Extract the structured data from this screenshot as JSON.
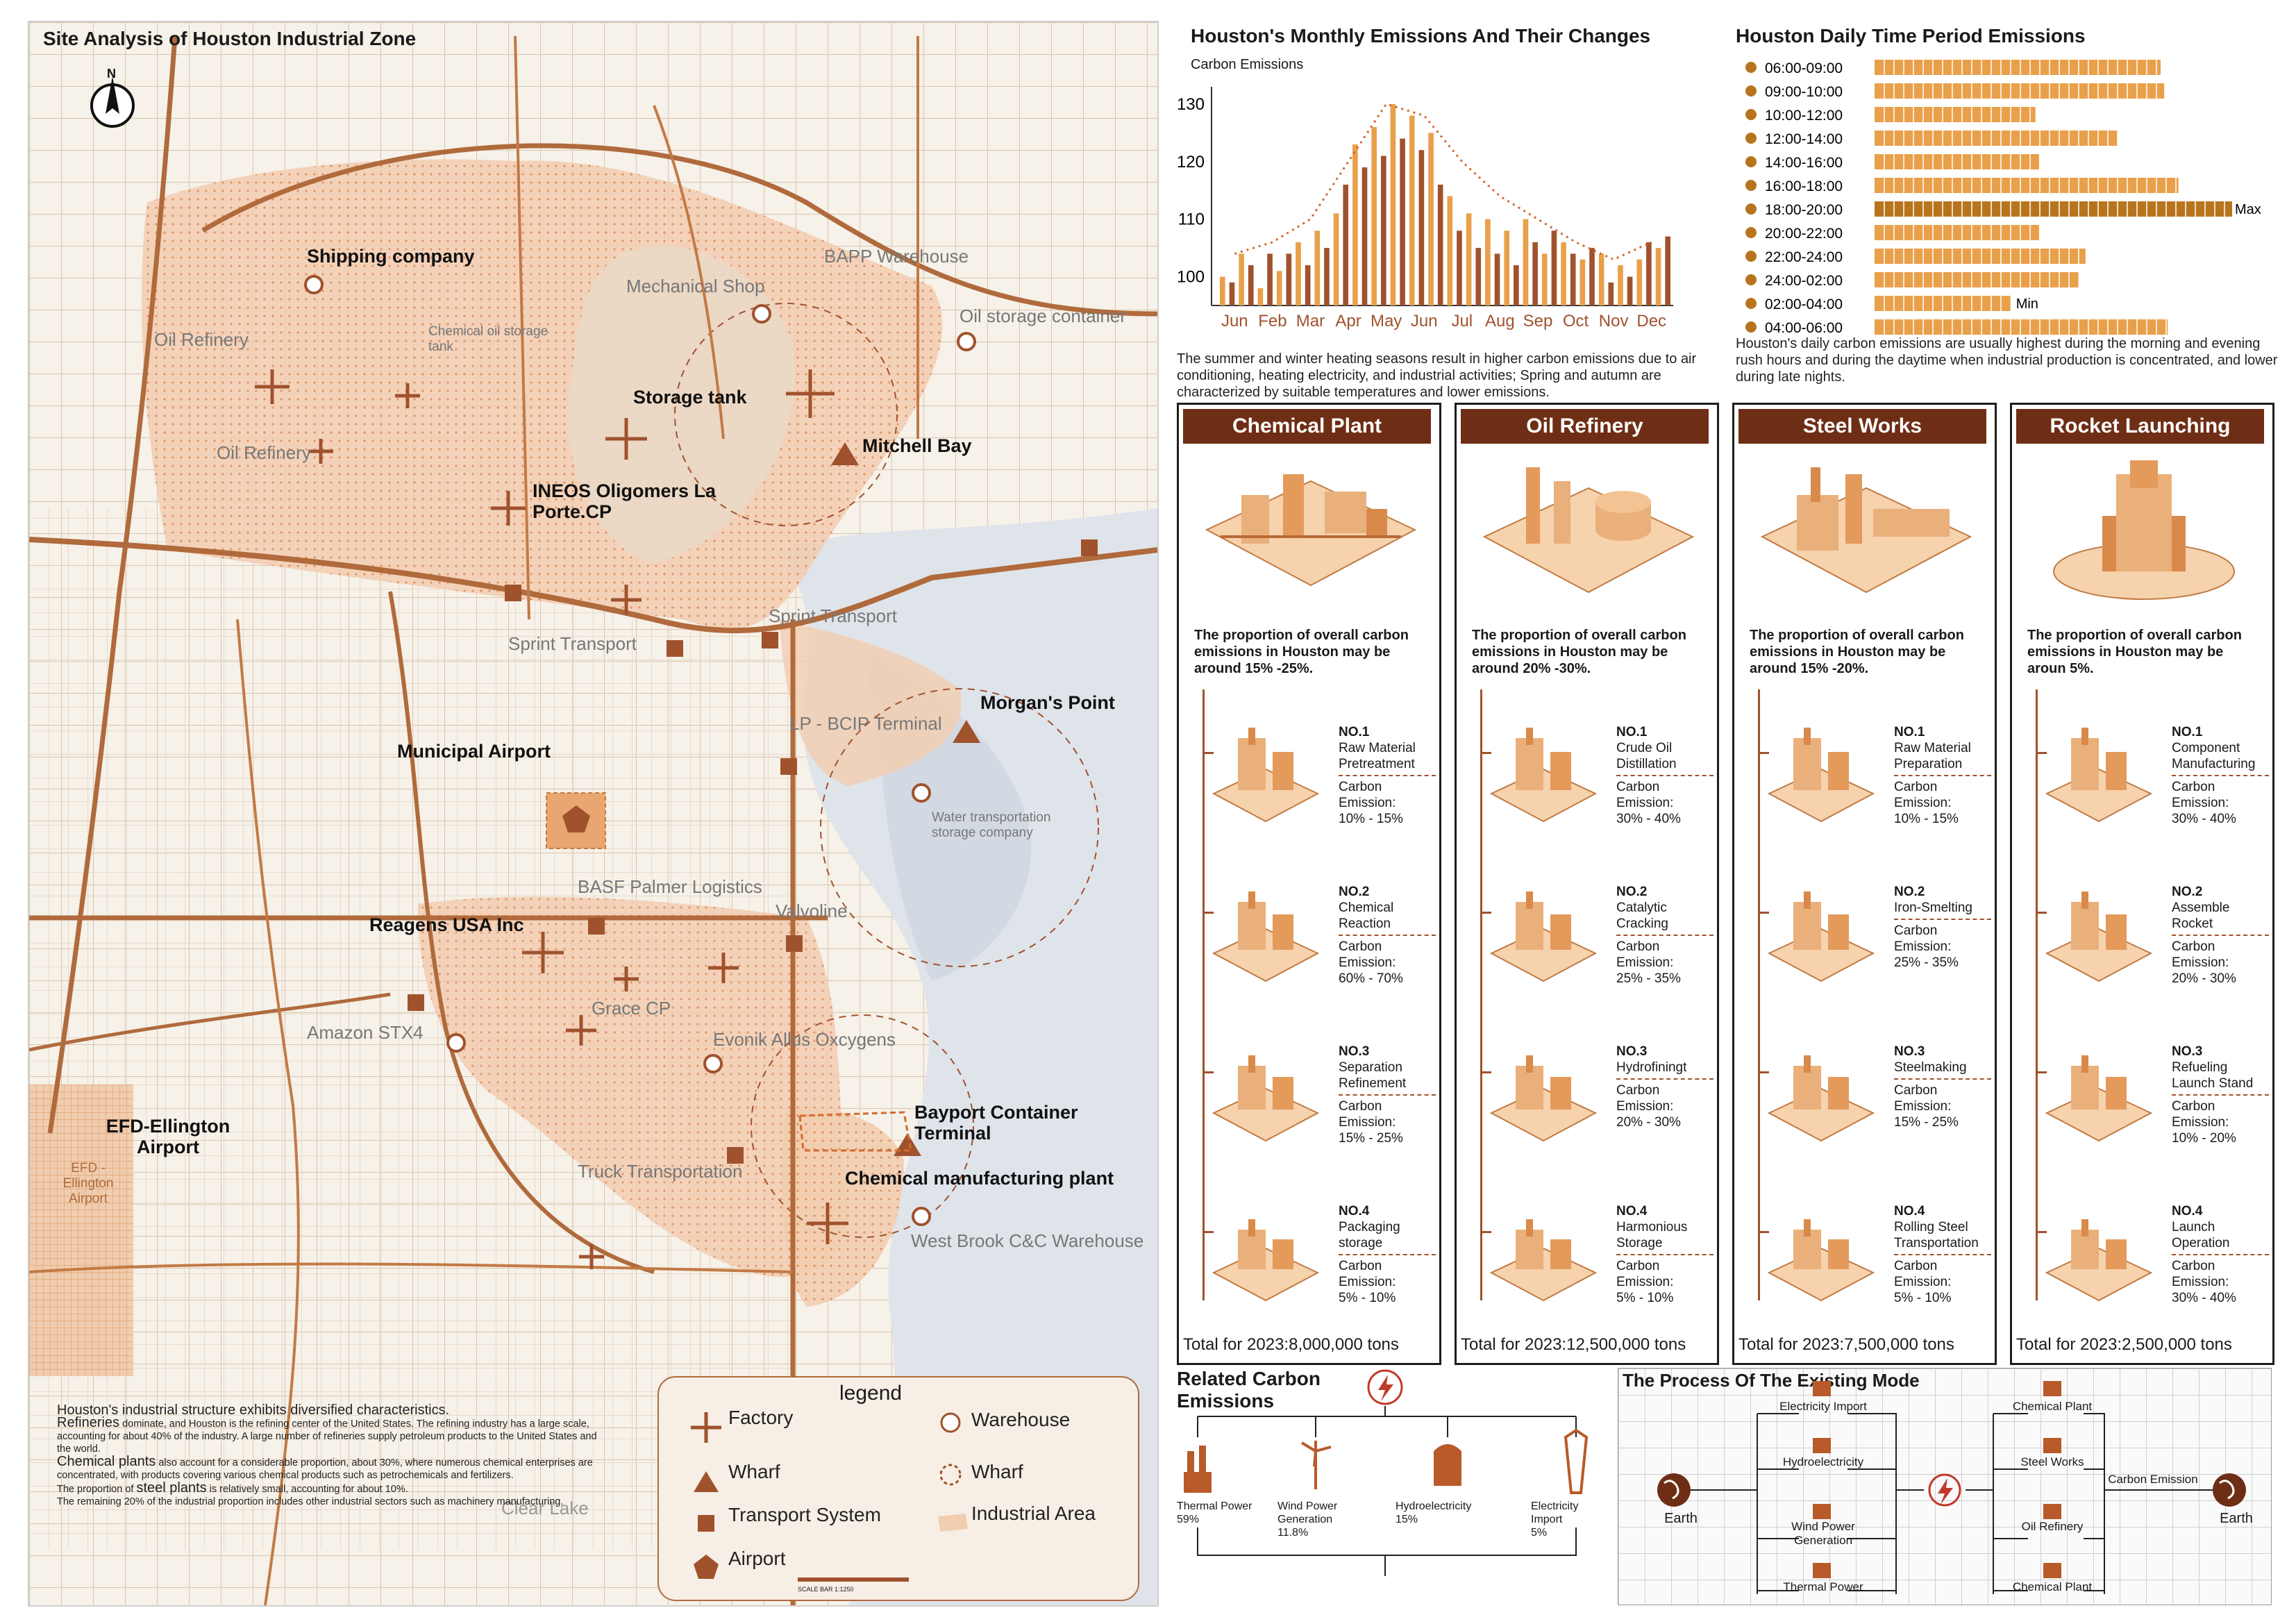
{
  "map": {
    "title": "Site Analysis of Houston Industrial Zone",
    "north": "N",
    "labels": {
      "shipping": "Shipping company",
      "mech": "Mechanical Shop",
      "bapp": "BAPP Warehouse",
      "oilstore": "Oil storage container",
      "oilref1": "Oil Refinery",
      "chemstore": "Chemical oil storage tank",
      "storage": "Storage tank",
      "oilref2": "Oil Refinery",
      "ineos": "INEOS Oligomers La Porte.CP",
      "mitchell": "Mitchell Bay",
      "sprint1": "Sprint Transport",
      "sprint2": "Sprint Transport",
      "morgan": "Morgan's Point",
      "lpbcip": "LP - BCIP Terminal",
      "municipal": "Municipal Airport",
      "water": "Water transportation storage company",
      "basf": "BASF Palmer Logistics",
      "reagens": "Reagens USA Inc",
      "valvoline": "Valvoline",
      "grace": "Grace CP",
      "amazon": "Amazon STX4",
      "evonik": "Evonik Allus Oxcygens",
      "efd": "EFD-Ellington Airport",
      "efd_small": "EFD - Ellington Airport",
      "bayport": "Bayport Container Terminal",
      "truck": "Truck Transportation",
      "chemmfg": "Chemical manufacturing plant",
      "westbrook": "West Brook C&C Warehouse",
      "clearlake": "Clear Lake"
    },
    "legend": {
      "title": "legend",
      "factory": "Factory",
      "warehouse": "Warehouse",
      "wharf_tri": "Wharf",
      "wharf_circle": "Wharf",
      "transport": "Transport System",
      "industrial": "Industrial Area",
      "airport": "Airport",
      "scale": "SCALE BAR 1:1250"
    },
    "note": {
      "lead": "Houston's industrial structure exhibits diversified characteristics.",
      "ref_word": "Refineries",
      "ref_text": " dominate, and Houston is the refining center of the United States. The refining industry has a large scale, accounting for about 40% of the industry. A large number of refineries supply petroleum products to the United States and the world.",
      "chem_word": "Chemical plants",
      "chem_text": " also account for a considerable proportion, about 30%, where numerous chemical enterprises are concentrated, with products covering various chemical products such as petrochemicals and fertilizers.",
      "steel_pre": "The proportion of ",
      "steel_word": "steel plants",
      "steel_text": " is relatively small, accounting for about 10%.",
      "rest": "The remaining 20% of the industrial proportion includes other industrial sectors such as machinery manufacturing."
    }
  },
  "monthly": {
    "title": "Houston's Monthly Emissions And Their Changes",
    "ylabel": "Carbon Emissions",
    "caption": "The summer and winter heating seasons result in higher carbon emissions due to air conditioning, heating electricity, and industrial activities; Spring and autumn are characterized by suitable temperatures and lower emissions."
  },
  "chart_data": [
    {
      "type": "bar",
      "title": "Houston's Monthly Emissions And Their Changes",
      "ylabel": "Carbon Emissions",
      "ylim": [
        95,
        133
      ],
      "yticks": [
        100,
        110,
        120,
        130
      ],
      "categories": [
        "Jun",
        "Feb",
        "Mar",
        "Apr",
        "May",
        "Jun",
        "Jul",
        "Aug",
        "Sep",
        "Oct",
        "Nov",
        "Dec"
      ],
      "bars_per_category": [
        [
          100,
          99,
          104,
          102
        ],
        [
          98,
          104,
          101,
          104
        ],
        [
          106,
          102,
          108,
          105
        ],
        [
          111,
          116,
          123,
          119
        ],
        [
          126,
          121,
          130,
          124
        ],
        [
          128,
          122,
          125,
          116
        ],
        [
          114,
          108,
          111,
          105
        ],
        [
          110,
          104,
          108,
          102
        ],
        [
          110,
          106,
          104,
          108
        ],
        [
          106,
          104,
          103,
          105
        ],
        [
          104,
          99,
          102,
          100
        ],
        [
          103,
          106,
          105,
          107
        ]
      ],
      "trend": [
        104,
        106,
        110,
        120,
        130,
        128,
        120,
        114,
        110,
        106,
        103,
        106
      ]
    },
    {
      "type": "bar",
      "title": "Houston Daily Time Period Emissions",
      "orientation": "horizontal",
      "categories": [
        "06:00-09:00",
        "09:00-10:00",
        "10:00-12:00",
        "12:00-14:00",
        "14:00-16:00",
        "16:00-18:00",
        "18:00-20:00",
        "20:00-22:00",
        "22:00-24:00",
        "24:00-02:00",
        "02:00-04:00",
        "04:00-06:00"
      ],
      "values": [
        80,
        81,
        45,
        68,
        46,
        85,
        100,
        46,
        59,
        57,
        38,
        82
      ],
      "annotations": {
        "max": "Max",
        "min": "Min"
      }
    }
  ],
  "daily": {
    "title": "Houston Daily Time Period Emissions",
    "caption": "Houston's daily carbon emissions are usually highest during the morning and evening rush hours and during the daytime when industrial production is concentrated, and lower during late nights.",
    "max_label": "Max",
    "min_label": "Min"
  },
  "columns": [
    {
      "name": "Chemical Plant",
      "prop": "The proportion of overall carbon emissions in Houston may be around 15% -25%.",
      "steps": [
        {
          "no": "NO.1",
          "title": "Raw Material Pretreatment",
          "em": "Carbon Emission:",
          "val": "10% - 15%"
        },
        {
          "no": "NO.2",
          "title": "Chemical Reaction",
          "em": "Carbon Emission:",
          "val": "60% - 70%"
        },
        {
          "no": "NO.3",
          "title": "Separation Refinement",
          "em": "Carbon Emission:",
          "val": "15% - 25%"
        },
        {
          "no": "NO.4",
          "title": "Packaging storage",
          "em": "Carbon Emission:",
          "val": "5% - 10%"
        }
      ],
      "total": "Total for 2023:8,000,000 tons"
    },
    {
      "name": "Oil Refinery",
      "prop": "The proportion of overall carbon emissions in Houston may be around 20% -30%.",
      "steps": [
        {
          "no": "NO.1",
          "title": "Crude Oil Distillation",
          "em": "Carbon Emission:",
          "val": "30% - 40%"
        },
        {
          "no": "NO.2",
          "title": "Catalytic Cracking",
          "em": "Carbon Emission:",
          "val": "25% - 35%"
        },
        {
          "no": "NO.3",
          "title": "Hydrofiningt",
          "em": "Carbon Emission:",
          "val": "20% - 30%"
        },
        {
          "no": "NO.4",
          "title": "Harmonious Storage",
          "em": "Carbon Emission:",
          "val": "5% - 10%"
        }
      ],
      "total": "Total for 2023:12,500,000 tons"
    },
    {
      "name": "Steel Works",
      "prop": "The proportion of overall carbon emissions in Houston may be around 15% -20%.",
      "steps": [
        {
          "no": "NO.1",
          "title": "Raw Material Preparation",
          "em": "Carbon Emission:",
          "val": "10% - 15%"
        },
        {
          "no": "NO.2",
          "title": "Iron-Smelting",
          "em": "Carbon Emission:",
          "val": "25% - 35%"
        },
        {
          "no": "NO.3",
          "title": "Steelmaking",
          "em": "Carbon Emission:",
          "val": "15% - 25%"
        },
        {
          "no": "NO.4",
          "title": "Rolling Steel Transportation",
          "em": "Carbon Emission:",
          "val": "5% - 10%"
        }
      ],
      "total": "Total for 2023:7,500,000 tons"
    },
    {
      "name": "Rocket Launching",
      "prop": "The proportion of overall carbon emissions in Houston may be aroun 5%.",
      "steps": [
        {
          "no": "NO.1",
          "title": "Component Manufacturing",
          "em": "Carbon Emission:",
          "val": "30% - 40%"
        },
        {
          "no": "NO.2",
          "title": "Assemble Rocket",
          "em": "Carbon Emission:",
          "val": "20% - 30%"
        },
        {
          "no": "NO.3",
          "title": "Refueling Launch Stand",
          "em": "Carbon Emission:",
          "val": "10% - 20%"
        },
        {
          "no": "NO.4",
          "title": "Launch Operation",
          "em": "Carbon Emission:",
          "val": "30% - 40%"
        }
      ],
      "total": "Total for 2023:2,500,000 tons"
    }
  ],
  "related": {
    "title": "Related Carbon Emissions",
    "items": [
      {
        "label": "Thermal Power",
        "pct": "59%"
      },
      {
        "label": "Wind Power Generation",
        "pct": "11.8%"
      },
      {
        "label": "Hydroelectricity",
        "pct": "15%"
      },
      {
        "label": "Electricity Import",
        "pct": "5%"
      }
    ]
  },
  "process": {
    "title": "The Process Of The Existing Mode",
    "earth_left": "Earth",
    "earth_right": "Earth",
    "left_nodes": [
      "Electricity Import",
      "Hydroelectricity",
      "Wind Power Generation",
      "Thermal Power"
    ],
    "right_nodes": [
      "Chemical Plant",
      "Steel Works",
      "Oil Refinery",
      "Chemical Plant"
    ],
    "carbon": "Carbon Emission"
  },
  "colors": {
    "accent": "#d9823b",
    "dark": "#6e2e15",
    "bar": "#e9a04a",
    "area": "#f2cdb0"
  }
}
